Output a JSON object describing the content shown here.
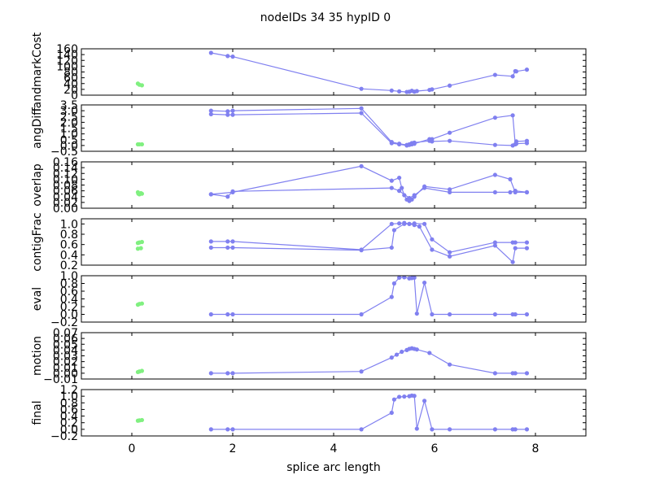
{
  "title": "nodeIDs 34 35 hypID 0",
  "xlabel": "splice arc length",
  "colors": {
    "main_series": "#8080f0",
    "secondary_series": "#80f080",
    "frame": "#000000"
  },
  "chart_data": {
    "type": "line",
    "shared_x": {
      "label": "splice arc length",
      "lim": [
        -1,
        9
      ],
      "ticks": [
        0,
        2,
        4,
        6,
        8
      ],
      "tick_labels": [
        "0",
        "2",
        "4",
        "6",
        "8"
      ]
    },
    "panels": [
      {
        "ylabel": "landmarkCost",
        "ylim": [
          0,
          160
        ],
        "yticks": [
          0,
          20,
          40,
          60,
          80,
          100,
          120,
          140,
          160
        ],
        "ytick_labels": [
          "0",
          "20",
          "40",
          "60",
          "80",
          "100",
          "120",
          "140",
          "160"
        ],
        "series": [
          {
            "color": "#8080f0",
            "line": true,
            "x": [
              1.57,
              1.9,
              2.0,
              4.55,
              5.15,
              5.3,
              5.45,
              5.5,
              5.55,
              5.6,
              5.65,
              5.9,
              5.95,
              6.3,
              7.2,
              7.55,
              7.6,
              7.62,
              7.83
            ],
            "y": [
              146,
              135,
              133,
              22,
              16,
              13,
              11,
              12,
              15,
              12,
              14,
              18,
              20,
              33,
              70,
              65,
              83,
              82,
              88
            ]
          },
          {
            "color": "#80f080",
            "line": false,
            "x": [
              0.12,
              0.15,
              0.2
            ],
            "y": [
              40,
              36,
              34
            ]
          }
        ]
      },
      {
        "ylabel": "angDiff",
        "ylim": [
          -0.5,
          3.5
        ],
        "yticks": [
          -0.5,
          0.0,
          0.5,
          1.0,
          1.5,
          2.0,
          2.5,
          3.0,
          3.5
        ],
        "ytick_labels": [
          "−0.5",
          "0.0",
          "0.5",
          "1.0",
          "1.5",
          "2.0",
          "2.5",
          "3.0",
          "3.5"
        ],
        "series": [
          {
            "color": "#8080f0",
            "line": true,
            "x": [
              1.57,
              1.9,
              2.0,
              4.55,
              5.15,
              5.3,
              5.45,
              5.5,
              5.55,
              5.6,
              5.9,
              5.95,
              6.3,
              7.2,
              7.55,
              7.6,
              7.62,
              7.83
            ],
            "y": [
              3.0,
              2.95,
              3.0,
              3.2,
              0.3,
              0.15,
              0.05,
              0.1,
              0.2,
              0.25,
              0.4,
              0.55,
              1.1,
              2.4,
              2.6,
              0.1,
              0.15,
              0.2
            ]
          },
          {
            "color": "#8080f0",
            "line": true,
            "x": [
              1.57,
              1.9,
              2.0,
              4.55,
              5.15,
              5.3,
              5.45,
              5.5,
              5.55,
              5.6,
              5.9,
              5.95,
              6.3,
              7.2,
              7.55,
              7.6,
              7.62,
              7.83
            ],
            "y": [
              2.7,
              2.65,
              2.65,
              2.8,
              0.2,
              0.1,
              0.0,
              0.05,
              0.1,
              0.15,
              0.55,
              0.35,
              0.4,
              0.05,
              0.0,
              0.1,
              0.35,
              0.4
            ]
          },
          {
            "color": "#80f080",
            "line": false,
            "x": [
              0.12,
              0.15,
              0.2
            ],
            "y": [
              0.1,
              0.1,
              0.1
            ]
          }
        ]
      },
      {
        "ylabel": "overlap",
        "ylim": [
          0.0,
          0.16
        ],
        "yticks": [
          0.0,
          0.02,
          0.04,
          0.06,
          0.08,
          0.1,
          0.12,
          0.14,
          0.16
        ],
        "ytick_labels": [
          "0.00",
          "0.02",
          "0.04",
          "0.06",
          "0.08",
          "0.10",
          "0.12",
          "0.14",
          "0.16"
        ],
        "series": [
          {
            "color": "#8080f0",
            "line": true,
            "x": [
              1.57,
              2.0,
              4.55,
              5.15,
              5.3,
              5.35,
              5.4,
              5.45,
              5.5,
              5.55,
              5.6,
              5.8,
              6.3,
              7.2,
              7.5,
              7.6,
              7.83
            ],
            "y": [
              0.048,
              0.055,
              0.145,
              0.095,
              0.105,
              0.07,
              0.045,
              0.03,
              0.025,
              0.03,
              0.04,
              0.075,
              0.065,
              0.115,
              0.1,
              0.055,
              0.055
            ]
          },
          {
            "color": "#8080f0",
            "line": true,
            "x": [
              1.57,
              1.9,
              2.0,
              5.15,
              5.3,
              5.5,
              5.6,
              5.8,
              6.3,
              7.2,
              7.5,
              7.6,
              7.83
            ],
            "y": [
              0.048,
              0.04,
              0.058,
              0.07,
              0.06,
              0.035,
              0.045,
              0.07,
              0.055,
              0.055,
              0.055,
              0.06,
              0.055
            ]
          },
          {
            "color": "#80f080",
            "line": false,
            "x": [
              0.12,
              0.13,
              0.15,
              0.18,
              0.2
            ],
            "y": [
              0.055,
              0.05,
              0.048,
              0.052,
              0.05
            ]
          }
        ]
      },
      {
        "ylabel": "contigFrac",
        "ylim": [
          0.2,
          1.1
        ],
        "yticks": [
          0.2,
          0.4,
          0.6,
          0.8,
          1.0
        ],
        "ytick_labels": [
          "0.2",
          "0.4",
          "0.6",
          "0.8",
          "1.0"
        ],
        "series": [
          {
            "color": "#8080f0",
            "line": true,
            "x": [
              1.57,
              1.9,
              2.0,
              4.55,
              5.15,
              5.3,
              5.4,
              5.5,
              5.6,
              5.8,
              5.95,
              6.3,
              7.2,
              7.55,
              7.6,
              7.83
            ],
            "y": [
              0.66,
              0.66,
              0.66,
              0.5,
              1.0,
              1.01,
              1.02,
              1.0,
              1.01,
              1.0,
              0.7,
              0.45,
              0.64,
              0.64,
              0.64,
              0.64
            ]
          },
          {
            "color": "#8080f0",
            "line": true,
            "x": [
              1.57,
              1.9,
              2.0,
              4.55,
              5.15,
              5.2,
              5.4,
              5.5,
              5.6,
              5.7,
              5.95,
              6.3,
              7.2,
              7.55,
              7.6,
              7.83
            ],
            "y": [
              0.54,
              0.54,
              0.54,
              0.49,
              0.54,
              0.88,
              1.0,
              1.0,
              0.98,
              0.95,
              0.5,
              0.37,
              0.58,
              0.26,
              0.53,
              0.53
            ]
          },
          {
            "color": "#80f080",
            "line": false,
            "x": [
              0.12,
              0.15,
              0.2,
              0.12,
              0.18
            ],
            "y": [
              0.63,
              0.64,
              0.65,
              0.52,
              0.53
            ]
          }
        ]
      },
      {
        "ylabel": "eval",
        "ylim": [
          -0.2,
          1.0
        ],
        "yticks": [
          -0.2,
          0.0,
          0.2,
          0.4,
          0.6,
          0.8,
          1.0
        ],
        "ytick_labels": [
          "−0.2",
          "0.0",
          "0.2",
          "0.4",
          "0.6",
          "0.8",
          "1.0"
        ],
        "series": [
          {
            "color": "#8080f0",
            "line": true,
            "x": [
              1.57,
              1.9,
              2.0,
              4.55,
              5.15,
              5.2,
              5.3,
              5.4,
              5.5,
              5.55,
              5.6,
              5.65,
              5.8,
              5.95,
              6.3,
              7.2,
              7.55,
              7.6,
              7.83
            ],
            "y": [
              0.0,
              0.0,
              0.0,
              0.0,
              0.45,
              0.8,
              0.95,
              0.96,
              0.93,
              0.94,
              0.95,
              0.02,
              0.82,
              0.0,
              0.0,
              0.0,
              0.0,
              0.0,
              0.0
            ]
          },
          {
            "color": "#80f080",
            "line": false,
            "x": [
              0.12,
              0.15,
              0.2
            ],
            "y": [
              0.25,
              0.27,
              0.28
            ]
          }
        ]
      },
      {
        "ylabel": "motion",
        "ylim": [
          -0.01,
          0.07
        ],
        "yticks": [
          -0.01,
          0.0,
          0.01,
          0.02,
          0.03,
          0.04,
          0.05,
          0.06,
          0.07
        ],
        "ytick_labels": [
          "−0.01",
          "0.00",
          "0.01",
          "0.02",
          "0.03",
          "0.04",
          "0.05",
          "0.06",
          "0.07"
        ],
        "series": [
          {
            "color": "#8080f0",
            "line": true,
            "x": [
              1.57,
              1.9,
              2.0,
              4.55,
              5.15,
              5.25,
              5.35,
              5.45,
              5.5,
              5.55,
              5.6,
              5.65,
              5.9,
              6.3,
              7.2,
              7.55,
              7.6,
              7.83
            ],
            "y": [
              0.0,
              0.0,
              0.0,
              0.003,
              0.027,
              0.032,
              0.037,
              0.04,
              0.042,
              0.043,
              0.042,
              0.041,
              0.035,
              0.015,
              0.0,
              0.0,
              0.0,
              0.0
            ]
          },
          {
            "color": "#80f080",
            "line": false,
            "x": [
              0.12,
              0.15,
              0.2
            ],
            "y": [
              0.002,
              0.003,
              0.004
            ]
          }
        ]
      },
      {
        "ylabel": "final",
        "ylim": [
          -0.2,
          1.2
        ],
        "yticks": [
          -0.2,
          0.0,
          0.2,
          0.4,
          0.6,
          0.8,
          1.0,
          1.2
        ],
        "ytick_labels": [
          "−0.2",
          "0.0",
          "0.2",
          "0.4",
          "0.6",
          "0.8",
          "1.0",
          "1.2"
        ],
        "series": [
          {
            "color": "#8080f0",
            "line": true,
            "x": [
              1.57,
              1.9,
              2.0,
              4.55,
              5.15,
              5.2,
              5.3,
              5.4,
              5.5,
              5.55,
              5.6,
              5.65,
              5.8,
              5.95,
              6.3,
              7.2,
              7.55,
              7.6,
              7.83
            ],
            "y": [
              0.0,
              0.0,
              0.0,
              0.0,
              0.5,
              0.9,
              0.98,
              0.99,
              1.0,
              1.02,
              1.01,
              0.02,
              0.86,
              0.0,
              0.0,
              0.0,
              0.0,
              0.0,
              0.0
            ]
          },
          {
            "color": "#80f080",
            "line": false,
            "x": [
              0.12,
              0.15,
              0.2
            ],
            "y": [
              0.26,
              0.27,
              0.28
            ]
          }
        ]
      }
    ]
  }
}
